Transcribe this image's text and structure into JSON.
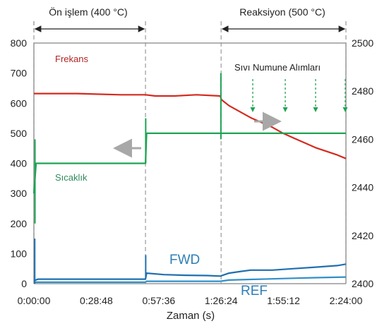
{
  "chart_data": {
    "type": "line",
    "xlabel": "Zaman (s)",
    "x_ticks": [
      "0:00:00",
      "0:28:48",
      "0:57:36",
      "1:26:24",
      "1:55:12",
      "2:24:00"
    ],
    "x_range_minutes": [
      0,
      144
    ],
    "y_left": {
      "range": [
        0,
        800
      ],
      "ticks": [
        0,
        100,
        200,
        300,
        400,
        500,
        600,
        700,
        800
      ]
    },
    "y_right": {
      "range": [
        2400,
        2500
      ],
      "ticks": [
        2400,
        2420,
        2440,
        2460,
        2480,
        2500
      ]
    },
    "phases": [
      {
        "label": "Ön işlem (400 °C)",
        "start_min": 0,
        "end_min": 51.5
      },
      {
        "label": "Reaksiyon (500 °C)",
        "start_min": 86.4,
        "end_min": 144
      }
    ],
    "annotations": {
      "sampling": "Sıvı Numune Alımları",
      "sampling_times_min": [
        101,
        116,
        130,
        144
      ]
    },
    "series": [
      {
        "name": "Frekans",
        "axis": "right",
        "color": "#d42a1f",
        "x": [
          0,
          20,
          40,
          51.5,
          56,
          65,
          75,
          86,
          86.5,
          90,
          95,
          100,
          105,
          110,
          115,
          120,
          125,
          130,
          135,
          140,
          144
        ],
        "y": [
          2479,
          2479,
          2478.5,
          2478.5,
          2478,
          2478,
          2478.5,
          2478,
          2476.5,
          2474,
          2471.5,
          2469,
          2467,
          2465,
          2462.5,
          2460.5,
          2458.5,
          2456.5,
          2455,
          2453.5,
          2452
        ]
      },
      {
        "name": "Sıcaklık",
        "axis": "left",
        "color": "#1fa353",
        "x": [
          0,
          1,
          5,
          20,
          40,
          51.5,
          52,
          60,
          70,
          86,
          86.5,
          95,
          110,
          125,
          140,
          144
        ],
        "y": [
          300,
          400,
          400,
          400,
          400,
          400,
          500,
          500,
          500,
          500,
          500,
          500,
          500,
          500,
          500,
          500
        ]
      },
      {
        "name": "FWD",
        "axis": "left",
        "color": "#1f6fb0",
        "x": [
          0,
          2,
          10,
          30,
          51.5,
          52,
          60,
          70,
          80,
          86,
          90,
          95,
          100,
          105,
          110,
          120,
          130,
          140,
          144
        ],
        "y": [
          10,
          15,
          15,
          15,
          15,
          35,
          30,
          28,
          27,
          25,
          35,
          40,
          45,
          45,
          45,
          50,
          55,
          60,
          65
        ]
      },
      {
        "name": "REF",
        "axis": "left",
        "color": "#2f8fc9",
        "x": [
          0,
          20,
          51.5,
          52,
          70,
          86,
          90,
          100,
          110,
          120,
          130,
          144
        ],
        "y": [
          5,
          5,
          5,
          8,
          8,
          8,
          12,
          14,
          16,
          18,
          20,
          22
        ]
      }
    ]
  }
}
